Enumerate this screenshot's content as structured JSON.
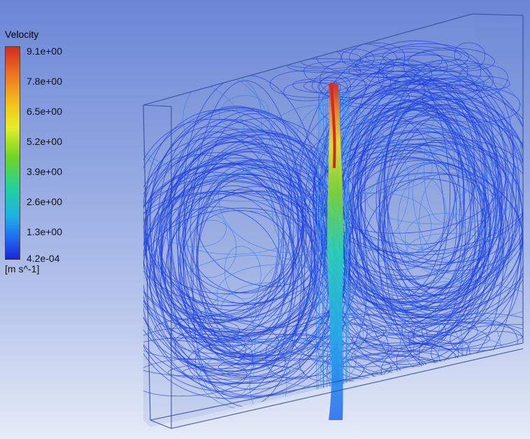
{
  "legend": {
    "title": "Velocity",
    "ticks": [
      "9.1e+00",
      "7.8e+00",
      "6.5e+00",
      "5.2e+00",
      "3.9e+00",
      "2.6e+00",
      "1.3e+00",
      "4.2e-04"
    ],
    "units": "[m s^-1]"
  },
  "colors": {
    "streamline": "#1e3fe0",
    "streamline_light": "#2d78ee",
    "box_edge": "#3a4f9c",
    "jet_top": "#d42a1e",
    "jet_mid": "#b8e02a",
    "jet_low": "#22c8e0"
  }
}
